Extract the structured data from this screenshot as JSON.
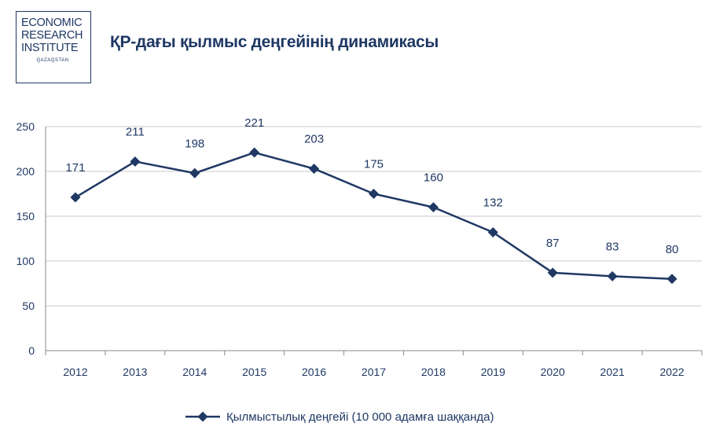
{
  "logo": {
    "line1": "ECONOMIC",
    "line2": "RESEARCH",
    "line3": "INSTITUTE",
    "sub": "QAZAQSTAN"
  },
  "colors": {
    "primary": "#1f3864",
    "grid": "#c8c8c8"
  },
  "chart_data": {
    "type": "line",
    "title": "ҚР-дағы қылмыс деңгейінің динамикасы",
    "xlabel": "",
    "ylabel": "",
    "categories": [
      "2012",
      "2013",
      "2014",
      "2015",
      "2016",
      "2017",
      "2018",
      "2019",
      "2020",
      "2021",
      "2022"
    ],
    "ylim": [
      0,
      250
    ],
    "yticks": [
      0,
      50,
      100,
      150,
      200,
      250
    ],
    "grid": true,
    "legend_position": "bottom",
    "series": [
      {
        "name": "Қылмыстылық деңгейі (10 000 адамға шаққанда)",
        "values": [
          171,
          211,
          198,
          221,
          203,
          175,
          160,
          132,
          87,
          83,
          80
        ],
        "marker": "diamond"
      }
    ]
  }
}
